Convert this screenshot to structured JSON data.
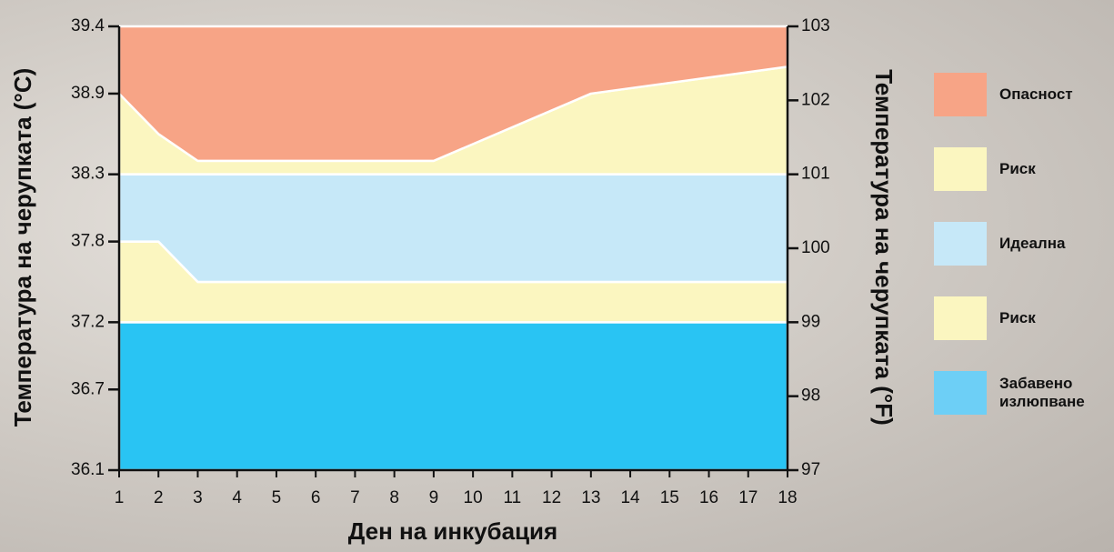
{
  "chart_data": {
    "type": "stacked_area",
    "xlabel": "Ден на инкубация",
    "ylabel": "Температура на черупката (°C)",
    "y2label": "Температура на черупката (°F)",
    "x": [
      1,
      2,
      3,
      9,
      13,
      18
    ],
    "xlim": [
      1,
      18
    ],
    "xticks": [
      1,
      2,
      3,
      4,
      5,
      6,
      7,
      8,
      9,
      10,
      11,
      12,
      13,
      14,
      15,
      16,
      17,
      18
    ],
    "ylim": [
      36.1,
      39.4
    ],
    "yticks": [
      36.1,
      36.7,
      37.2,
      37.8,
      38.3,
      38.9,
      39.4
    ],
    "y2lim": [
      97,
      103
    ],
    "y2ticks": [
      97,
      98,
      99,
      100,
      101,
      102,
      103
    ],
    "series": [
      {
        "name": "Забавено излюпване",
        "color": "#29c4f3",
        "legend_color": "#6dcff6",
        "values": [
          1.1,
          1.1,
          1.1,
          1.1,
          1.1,
          1.1
        ]
      },
      {
        "name": "Риск",
        "color": "#fbf6c0",
        "values": [
          0.6,
          0.6,
          0.3,
          0.3,
          0.3,
          0.3
        ]
      },
      {
        "name": "Идеална",
        "color": "#c6e8f8",
        "values": [
          0.5,
          0.5,
          0.8,
          0.8,
          0.8,
          0.8
        ]
      },
      {
        "name": "Риск",
        "color": "#fbf6c0",
        "values": [
          0.6,
          0.3,
          0.1,
          0.1,
          0.6,
          0.8
        ]
      },
      {
        "name": "Опасност",
        "color": "#f7a486",
        "values": [
          0.5,
          0.8,
          1.0,
          1.0,
          0.5,
          0.3
        ]
      }
    ]
  }
}
